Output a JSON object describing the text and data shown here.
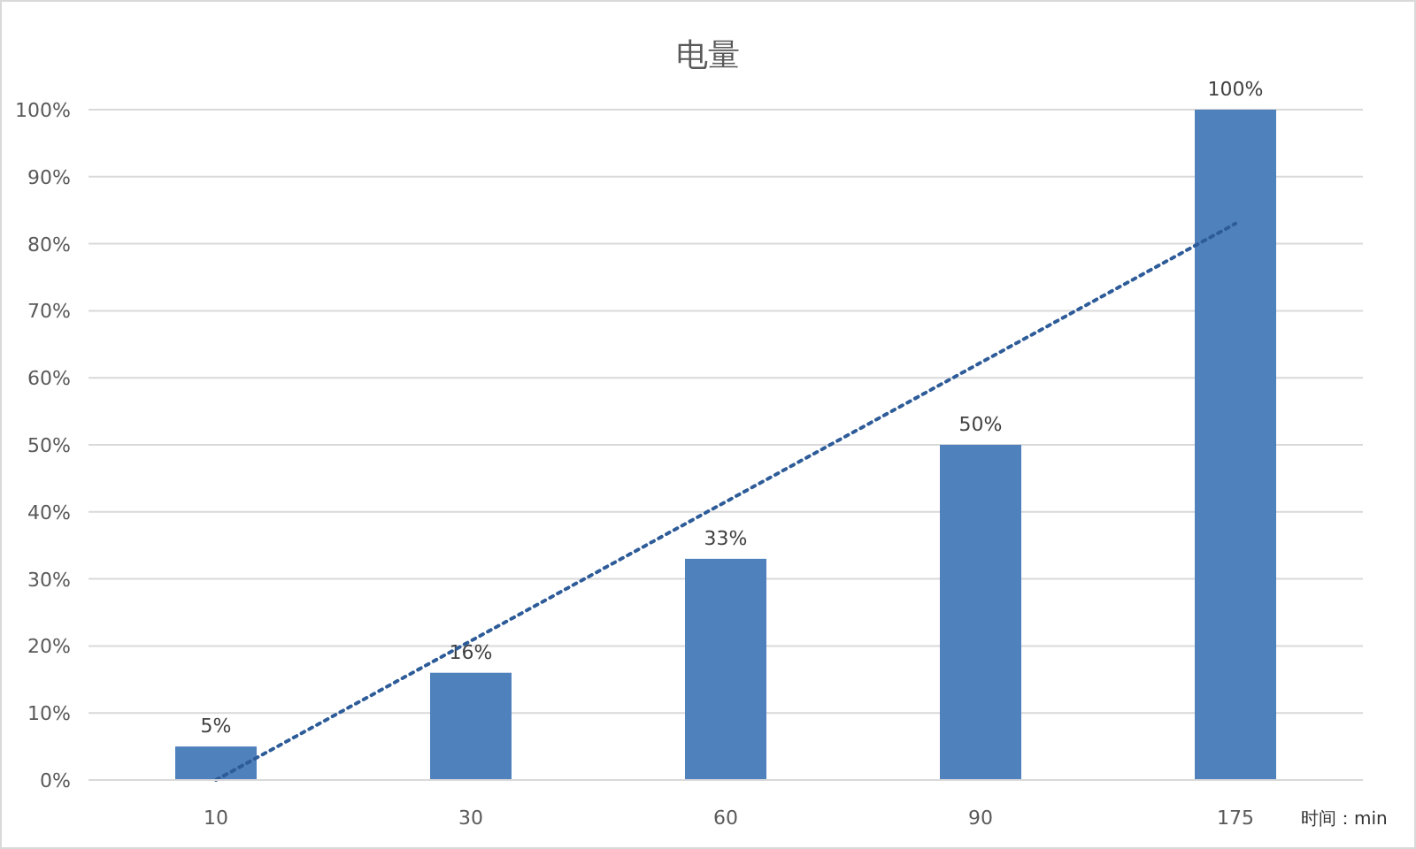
{
  "chart_data": {
    "type": "bar",
    "title": "电量",
    "xlabel": "时间：min",
    "categories": [
      "10",
      "30",
      "60",
      "90",
      "175"
    ],
    "series": [
      {
        "color": "#4f81bd",
        "values": [
          5,
          16,
          33,
          50,
          100
        ],
        "value_labels": [
          "5%",
          "16%",
          "33%",
          "50%",
          "100%"
        ]
      },
      {
        "type": "line",
        "x": [
          "10",
          "175"
        ],
        "values": [
          0,
          83
        ],
        "color": "#2e5c99",
        "line_style": "dotted",
        "marker": "none"
      }
    ],
    "ylim": [
      0,
      100
    ],
    "yticks": [
      {
        "value": 0,
        "label": "0%"
      },
      {
        "value": 10,
        "label": "10%"
      },
      {
        "value": 20,
        "label": "20%"
      },
      {
        "value": 30,
        "label": "30%"
      },
      {
        "value": 40,
        "label": "40%"
      },
      {
        "value": 50,
        "label": "50%"
      },
      {
        "value": 60,
        "label": "60%"
      },
      {
        "value": 70,
        "label": "70%"
      },
      {
        "value": 80,
        "label": "80%"
      },
      {
        "value": 90,
        "label": "90%"
      },
      {
        "value": 100,
        "label": "100%"
      }
    ],
    "grid": "y"
  }
}
